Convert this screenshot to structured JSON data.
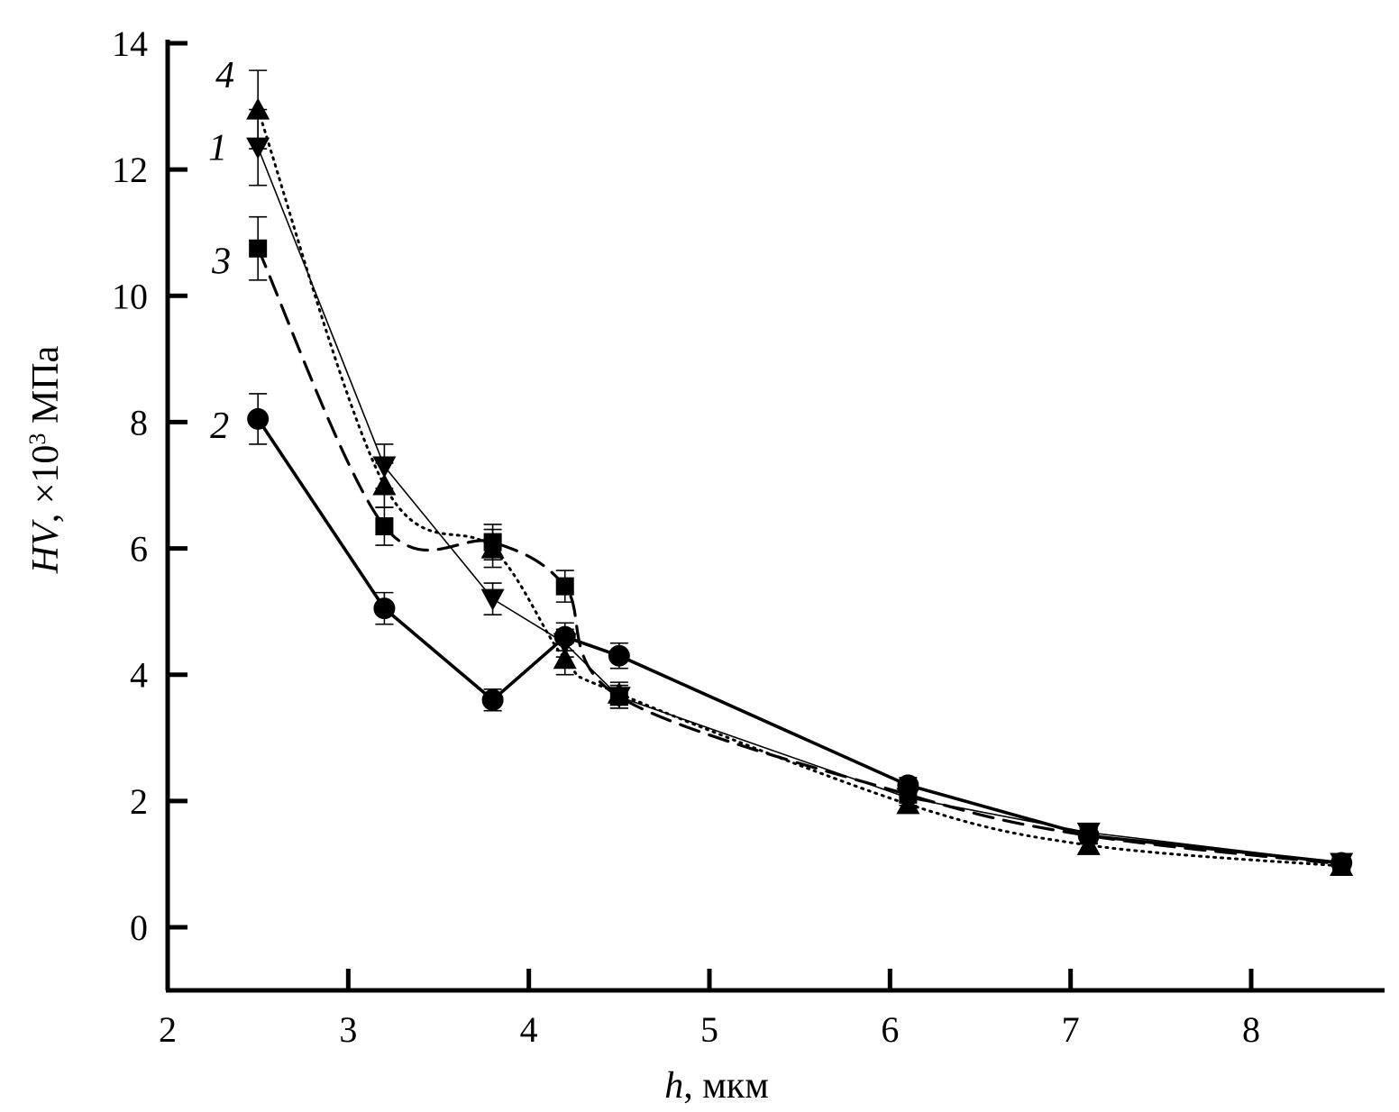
{
  "chart_data": {
    "type": "line",
    "title": "",
    "xlabel": "h, мкм",
    "xlabel_var": "h",
    "xlabel_unit": ", мкм",
    "ylabel": "HV, ×10³ МПа",
    "ylabel_var": "HV",
    "ylabel_rest": ", ×10",
    "ylabel_exp": "3",
    "ylabel_unit": " МПа",
    "xlim": [
      2,
      8.75
    ],
    "ylim": [
      -1,
      14.2
    ],
    "xticks": [
      2,
      3,
      4,
      5,
      6,
      7,
      8
    ],
    "yticks": [
      0,
      2,
      4,
      6,
      8,
      10,
      12,
      14
    ],
    "grid": false,
    "series": [
      {
        "name": "1",
        "label": "1",
        "marker": "triangle-down",
        "line": "thin-solid",
        "x": [
          2.5,
          3.2,
          3.8,
          4.2,
          4.5,
          6.1,
          7.1,
          8.5
        ],
        "values": [
          12.35,
          7.3,
          5.2,
          4.5,
          3.65,
          2.05,
          1.5,
          1.02
        ],
        "errors": [
          0.6,
          0.35,
          0.25,
          0.22,
          0.18,
          0.12,
          0.12,
          0.1
        ]
      },
      {
        "name": "2",
        "label": "2",
        "marker": "circle",
        "line": "thick-solid",
        "x": [
          2.5,
          3.2,
          3.8,
          4.2,
          4.5,
          6.1,
          7.1,
          8.5
        ],
        "values": [
          8.05,
          5.05,
          3.6,
          4.6,
          4.3,
          2.25,
          1.45,
          1.02
        ],
        "errors": [
          0.4,
          0.25,
          0.17,
          0.22,
          0.2,
          0.12,
          0.12,
          0.1
        ]
      },
      {
        "name": "3",
        "label": "3",
        "marker": "square",
        "line": "dashed",
        "x": [
          2.5,
          3.2,
          3.8,
          4.2,
          4.5,
          6.1,
          7.1,
          8.5
        ],
        "values": [
          10.75,
          6.35,
          6.1,
          5.4,
          3.65,
          2.1,
          1.45,
          1.0
        ],
        "errors": [
          0.5,
          0.3,
          0.28,
          0.25,
          0.18,
          0.12,
          0.12,
          0.1
        ]
      },
      {
        "name": "4",
        "label": "4",
        "marker": "triangle-up",
        "line": "dotted",
        "x": [
          2.5,
          3.2,
          3.8,
          4.2,
          4.5,
          6.1,
          7.1,
          8.5
        ],
        "values": [
          12.95,
          7.0,
          6.0,
          4.25,
          3.7,
          1.95,
          1.3,
          0.97
        ],
        "errors": [
          0.62,
          0.35,
          0.3,
          0.25,
          0.18,
          0.12,
          0.12,
          0.1
        ]
      }
    ],
    "series_label_positions": [
      {
        "label": "4",
        "x": 2.37,
        "y": 13.5
      },
      {
        "label": "1",
        "x": 2.33,
        "y": 12.35
      },
      {
        "label": "3",
        "x": 2.35,
        "y": 10.55
      },
      {
        "label": "2",
        "x": 2.34,
        "y": 7.95
      }
    ]
  }
}
